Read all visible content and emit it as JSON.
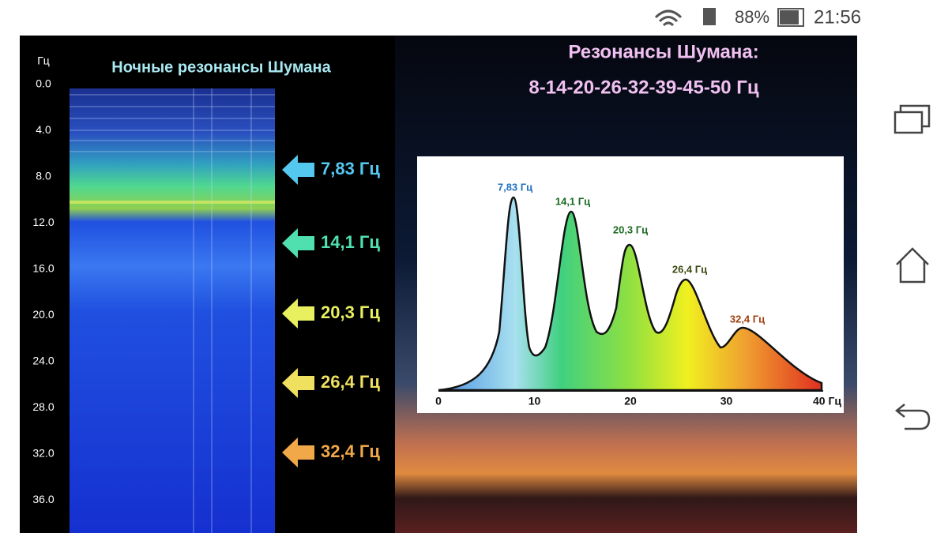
{
  "status_bar": {
    "battery": "88%",
    "time": "21:56"
  },
  "spectrogram": {
    "title": "Ночные резонансы Шумана",
    "axis_unit": "Гц",
    "yticks": [
      "0.0",
      "4.0",
      "8.0",
      "12.0",
      "16.0",
      "20.0",
      "24.0",
      "28.0",
      "32.0",
      "36.0"
    ],
    "markers": [
      "7,83 Гц",
      "14,1 Гц",
      "20,3 Гц",
      "26,4 Гц",
      "32,4 Гц"
    ]
  },
  "spectrum": {
    "title": "Резонансы Шумана:",
    "subtitle": "8-14-20-26-32-39-45-50 Гц",
    "peak_labels": [
      "7,83 Гц",
      "14,1 Гц",
      "20,3 Гц",
      "26,4 Гц",
      "32,4 Гц"
    ],
    "xticks": [
      "0",
      "10",
      "20",
      "30",
      "40 Гц"
    ]
  }
}
